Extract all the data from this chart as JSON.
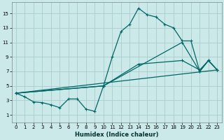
{
  "xlabel": "Humidex (Indice chaleur)",
  "bg_color": "#cce9e9",
  "grid_color": "#aacccc",
  "line_color": "#006666",
  "xlim": [
    -0.5,
    23.5
  ],
  "ylim": [
    0.0,
    16.5
  ],
  "xticks": [
    0,
    1,
    2,
    3,
    4,
    5,
    6,
    7,
    8,
    9,
    10,
    11,
    12,
    13,
    14,
    15,
    16,
    17,
    18,
    19,
    20,
    21,
    22,
    23
  ],
  "yticks": [
    1,
    3,
    5,
    7,
    9,
    11,
    13,
    15
  ],
  "series1_x": [
    0,
    1,
    2,
    3,
    4,
    5,
    6,
    7,
    8,
    9,
    10,
    11,
    12,
    13,
    14,
    15,
    16,
    17,
    18,
    19,
    20,
    21,
    22,
    23
  ],
  "series1_y": [
    4.0,
    3.5,
    2.8,
    2.7,
    2.4,
    2.0,
    3.2,
    3.2,
    1.8,
    1.5,
    5.0,
    9.0,
    12.5,
    13.5,
    15.7,
    14.8,
    14.5,
    13.5,
    13.0,
    11.2,
    11.2,
    7.0,
    8.5,
    7.2
  ],
  "series2_x": [
    0,
    23
  ],
  "series2_y": [
    4.0,
    7.2
  ],
  "series3_x": [
    0,
    10,
    14,
    19,
    21,
    22,
    23
  ],
  "series3_y": [
    4.0,
    5.0,
    8.0,
    8.5,
    7.2,
    8.5,
    7.2
  ],
  "series4_x": [
    0,
    10,
    19,
    21,
    22,
    23
  ],
  "series4_y": [
    4.0,
    5.0,
    11.0,
    7.0,
    8.5,
    7.2
  ]
}
